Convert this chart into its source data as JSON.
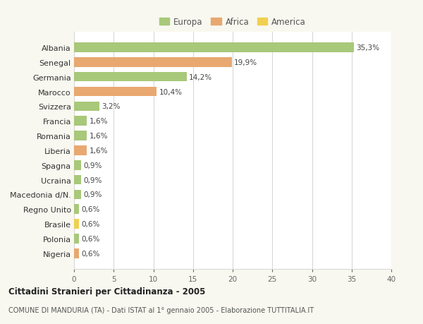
{
  "categories": [
    "Albania",
    "Senegal",
    "Germania",
    "Marocco",
    "Svizzera",
    "Francia",
    "Romania",
    "Liberia",
    "Spagna",
    "Ucraina",
    "Macedonia d/N.",
    "Regno Unito",
    "Brasile",
    "Polonia",
    "Nigeria"
  ],
  "values": [
    35.3,
    19.9,
    14.2,
    10.4,
    3.2,
    1.6,
    1.6,
    1.6,
    0.9,
    0.9,
    0.9,
    0.6,
    0.6,
    0.6,
    0.6
  ],
  "labels": [
    "35,3%",
    "19,9%",
    "14,2%",
    "10,4%",
    "3,2%",
    "1,6%",
    "1,6%",
    "1,6%",
    "0,9%",
    "0,9%",
    "0,9%",
    "0,6%",
    "0,6%",
    "0,6%",
    "0,6%"
  ],
  "continents": [
    "Europa",
    "Africa",
    "Europa",
    "Africa",
    "Europa",
    "Europa",
    "Europa",
    "Africa",
    "Europa",
    "Europa",
    "Europa",
    "Europa",
    "America",
    "Europa",
    "Africa"
  ],
  "colors": {
    "Europa": "#a8c87a",
    "Africa": "#e8a870",
    "America": "#f0d050"
  },
  "legend_order": [
    "Europa",
    "Africa",
    "America"
  ],
  "xlim": [
    0,
    40
  ],
  "xticks": [
    0,
    5,
    10,
    15,
    20,
    25,
    30,
    35,
    40
  ],
  "title": "Cittadini Stranieri per Cittadinanza - 2005",
  "subtitle": "COMUNE DI MANDURIA (TA) - Dati ISTAT al 1° gennaio 2005 - Elaborazione TUTTITALIA.IT",
  "bg_color": "#f8f8f0",
  "plot_bg_color": "#ffffff",
  "grid_color": "#d8d8d8"
}
